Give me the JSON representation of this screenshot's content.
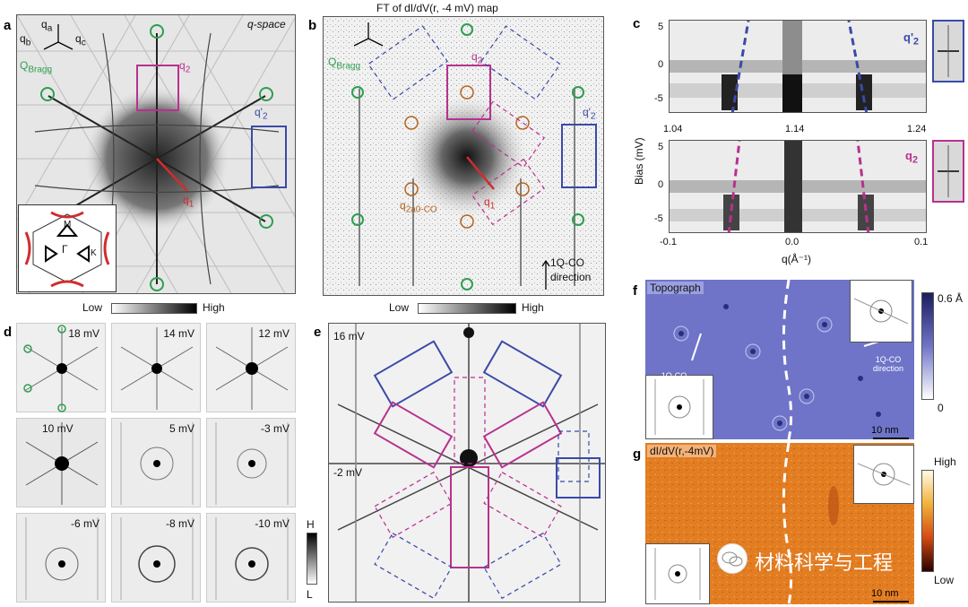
{
  "panels": {
    "a": {
      "letter": "a",
      "space_label": "q-space",
      "axis_qa": "q",
      "axis_qa_sub": "a",
      "axis_qb": "q",
      "axis_qb_sub": "b",
      "axis_qc": "q",
      "axis_qc_sub": "c",
      "bragg_label": "Q",
      "bragg_sub": "Bragg",
      "q2_label": "q",
      "q2_sub": "2",
      "q2p_label": "q'",
      "q2p_sub": "2",
      "q1_label": "q",
      "q1_sub": "1",
      "inset_M": "M",
      "inset_Gamma": "Γ",
      "inset_K": "K",
      "colorbar_low": "Low",
      "colorbar_high": "High"
    },
    "b": {
      "letter": "b",
      "title": "FT of dI/dV(r, -4 mV) map",
      "bragg_label": "Q",
      "bragg_sub": "Bragg",
      "q2_label": "q",
      "q2_sub": "2",
      "q2p_label": "q'",
      "q2p_sub": "2",
      "q1_label": "q",
      "q1_sub": "1",
      "qco_label": "q",
      "qco_sub": "2a0-CO",
      "direction_line1": "1Q-CO",
      "direction_line2": "direction",
      "colorbar_low": "Low",
      "colorbar_high": "High"
    },
    "c": {
      "letter": "c",
      "ylabel": "Bias (mV)",
      "xlabel": "q(Å⁻¹)",
      "top_label": "q'",
      "top_label_sub": "2",
      "bottom_label": "q",
      "bottom_label_sub": "2",
      "top_xticks": [
        "1.04",
        "1.14",
        "1.24"
      ],
      "bottom_xticks": [
        "-0.1",
        "0.0",
        "0.1"
      ],
      "top_yticks": [
        "5",
        "0",
        "-5"
      ],
      "bottom_yticks": [
        "5",
        "0",
        "-5"
      ]
    },
    "d": {
      "letter": "d",
      "energies": [
        "18 mV",
        "14 mV",
        "12 mV",
        "10 mV",
        "5 mV",
        "-3 mV",
        "-6 mV",
        "-8 mV",
        "-10 mV"
      ],
      "colorbar_high": "H",
      "colorbar_low": "L"
    },
    "e": {
      "letter": "e",
      "top_energy": "16 mV",
      "bottom_energy": "-2 mV"
    },
    "f": {
      "letter": "f",
      "title": "Topograph",
      "direction_left": "1Q-CO direction",
      "direction_right": "1Q-CO direction",
      "scale": "10 nm",
      "cbar_top": "0.6 Å",
      "cbar_bottom": "0"
    },
    "g": {
      "letter": "g",
      "title": "dI/dV(r,-4mV)",
      "scale": "10 nm",
      "cbar_top": "High",
      "cbar_bottom": "Low",
      "watermark": "材料科学与工程"
    }
  },
  "colors": {
    "magenta": "#b8318f",
    "blue": "#3a4aa8",
    "green": "#2e9e4f",
    "orange": "#b5651d",
    "red": "#d12c2c",
    "topo": "#6a6fc4",
    "didv": "#e07a1f"
  }
}
